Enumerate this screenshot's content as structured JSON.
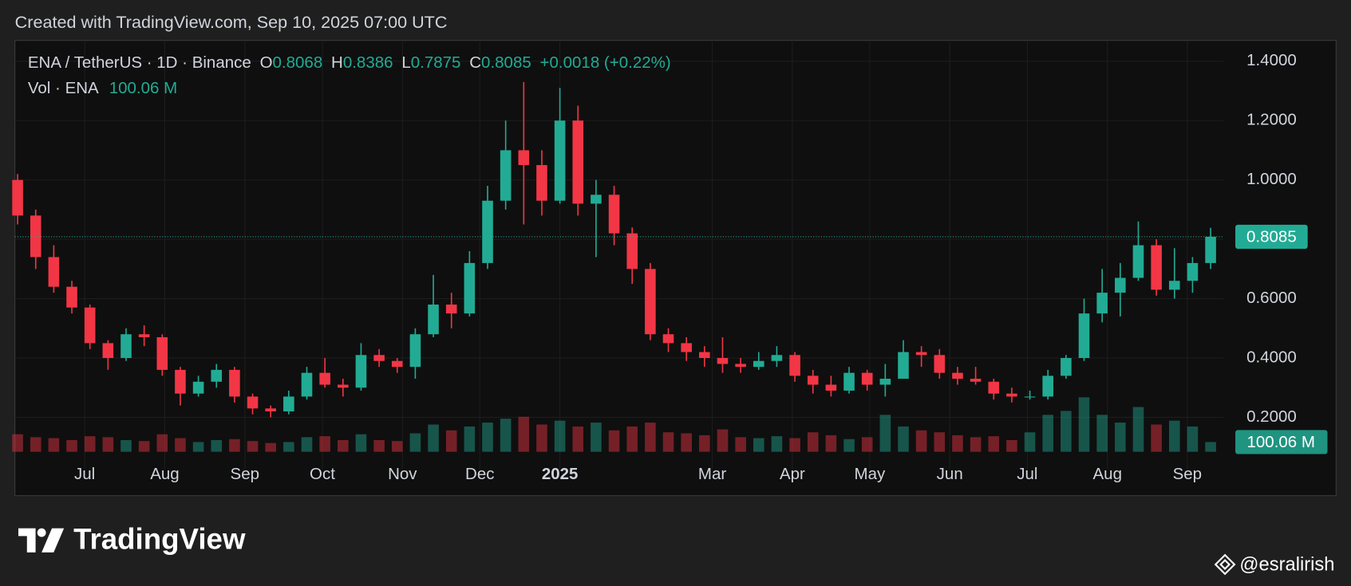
{
  "chart_data": {
    "type": "candlestick",
    "title": "Created with TradingView.com, Sep 10, 2025 07:00 UTC",
    "legend": {
      "symbol": "ENA / TetherUS · 1D · Binance",
      "items": [
        {
          "key": "O",
          "value": 0.8068
        },
        {
          "key": "H",
          "value": 0.8386
        },
        {
          "key": "L",
          "value": 0.7875
        },
        {
          "key": "C",
          "value": 0.8085
        }
      ],
      "change": "+0.0018 (+0.22%)"
    },
    "categories": [
      null,
      null,
      null,
      null,
      null,
      null,
      null,
      null,
      null,
      null,
      null,
      null,
      null,
      null,
      null,
      null,
      null,
      null,
      null,
      null,
      null,
      null,
      null,
      null,
      null,
      null,
      null,
      null,
      null,
      null,
      null,
      null,
      null,
      null,
      null,
      null,
      null,
      null,
      null,
      null,
      null,
      null,
      null,
      null,
      null,
      null,
      null,
      null,
      null,
      null,
      null,
      null,
      null,
      null,
      null,
      null,
      null,
      null,
      null,
      null,
      null,
      null,
      null,
      null,
      null,
      null,
      null
    ],
    "open": [
      1.0,
      0.88,
      0.74,
      0.64,
      0.57,
      0.45,
      0.4,
      0.48,
      0.47,
      0.36,
      0.28,
      0.32,
      0.36,
      0.27,
      0.23,
      0.22,
      0.27,
      0.35,
      0.31,
      0.3,
      0.41,
      0.39,
      0.37,
      0.48,
      0.58,
      0.55,
      0.72,
      0.93,
      1.1,
      1.05,
      0.93,
      1.2,
      0.92,
      0.95,
      0.82,
      0.7,
      0.48,
      0.45,
      0.42,
      0.4,
      0.38,
      0.37,
      0.39,
      0.41,
      0.34,
      0.31,
      0.29,
      0.35,
      0.31,
      0.33,
      0.42,
      0.41,
      0.35,
      0.33,
      0.32,
      0.28,
      0.27,
      0.27,
      0.34,
      0.4,
      0.55,
      0.62,
      0.67,
      0.78,
      0.63,
      0.66,
      0.72
    ],
    "high": [
      1.02,
      0.9,
      0.78,
      0.66,
      0.58,
      0.46,
      0.5,
      0.51,
      0.48,
      0.37,
      0.34,
      0.38,
      0.37,
      0.28,
      0.24,
      0.29,
      0.37,
      0.4,
      0.33,
      0.45,
      0.43,
      0.4,
      0.5,
      0.68,
      0.62,
      0.76,
      0.98,
      1.2,
      1.33,
      1.1,
      1.31,
      1.25,
      1.0,
      0.98,
      0.84,
      0.72,
      0.5,
      0.47,
      0.44,
      0.47,
      0.4,
      0.42,
      0.44,
      0.42,
      0.36,
      0.34,
      0.37,
      0.36,
      0.38,
      0.46,
      0.44,
      0.43,
      0.37,
      0.37,
      0.33,
      0.3,
      0.29,
      0.36,
      0.41,
      0.6,
      0.7,
      0.72,
      0.86,
      0.8,
      0.77,
      0.74,
      0.8386
    ],
    "low": [
      0.85,
      0.7,
      0.62,
      0.55,
      0.43,
      0.36,
      0.39,
      0.44,
      0.34,
      0.24,
      0.27,
      0.3,
      0.25,
      0.21,
      0.2,
      0.21,
      0.26,
      0.3,
      0.27,
      0.29,
      0.37,
      0.35,
      0.33,
      0.47,
      0.5,
      0.54,
      0.7,
      0.9,
      0.85,
      0.88,
      0.92,
      0.88,
      0.74,
      0.78,
      0.65,
      0.46,
      0.42,
      0.39,
      0.37,
      0.35,
      0.35,
      0.36,
      0.37,
      0.32,
      0.28,
      0.27,
      0.28,
      0.29,
      0.27,
      0.33,
      0.37,
      0.33,
      0.31,
      0.31,
      0.26,
      0.25,
      0.26,
      0.26,
      0.33,
      0.39,
      0.52,
      0.54,
      0.66,
      0.61,
      0.6,
      0.62,
      0.7
    ],
    "close": [
      0.88,
      0.74,
      0.64,
      0.57,
      0.45,
      0.4,
      0.48,
      0.47,
      0.36,
      0.28,
      0.32,
      0.36,
      0.27,
      0.23,
      0.22,
      0.27,
      0.35,
      0.31,
      0.3,
      0.41,
      0.39,
      0.37,
      0.48,
      0.58,
      0.55,
      0.72,
      0.93,
      1.1,
      1.05,
      0.93,
      1.2,
      0.92,
      0.95,
      0.82,
      0.7,
      0.48,
      0.45,
      0.42,
      0.4,
      0.38,
      0.37,
      0.39,
      0.41,
      0.34,
      0.31,
      0.29,
      0.35,
      0.31,
      0.33,
      0.42,
      0.41,
      0.35,
      0.33,
      0.32,
      0.28,
      0.27,
      0.27,
      0.34,
      0.4,
      0.55,
      0.62,
      0.67,
      0.78,
      0.63,
      0.66,
      0.72,
      0.8085
    ],
    "up_color": "#22ab94",
    "down_color": "#f23645",
    "volume": {
      "name": "Vol · ENA",
      "values": [
        180,
        150,
        140,
        120,
        160,
        150,
        120,
        110,
        180,
        140,
        100,
        120,
        130,
        110,
        90,
        100,
        150,
        160,
        120,
        180,
        120,
        110,
        190,
        280,
        220,
        260,
        300,
        340,
        360,
        280,
        320,
        260,
        300,
        220,
        260,
        300,
        200,
        190,
        170,
        230,
        150,
        140,
        160,
        140,
        200,
        170,
        130,
        150,
        380,
        260,
        220,
        200,
        170,
        150,
        160,
        120,
        200,
        380,
        420,
        560,
        380,
        300,
        460,
        280,
        320,
        260,
        100.06
      ],
      "last_label": "100.06 M",
      "y2lim": [
        0,
        1000
      ]
    },
    "last_price": 0.8085,
    "ylim": [
      0.084,
      1.47
    ],
    "yticks": [
      {
        "value": 0.2,
        "label": "0.2000"
      },
      {
        "value": 0.4,
        "label": "0.4000"
      },
      {
        "value": 0.6,
        "label": "0.6000"
      },
      {
        "value": 0.8,
        "label": "0.8000"
      },
      {
        "value": 1.0,
        "label": "1.0000"
      },
      {
        "value": 1.2,
        "label": "1.2000"
      },
      {
        "value": 1.4,
        "label": "1.4000"
      }
    ],
    "xlim": [
      -0.15,
      66.7
    ],
    "xticks": [
      {
        "value": 3.71,
        "label": "Jul"
      },
      {
        "value": 8.14,
        "label": "Aug"
      },
      {
        "value": 12.57,
        "label": "Sep"
      },
      {
        "value": 16.86,
        "label": "Oct"
      },
      {
        "value": 21.29,
        "label": "Nov"
      },
      {
        "value": 25.57,
        "label": "Dec"
      },
      {
        "value": 30,
        "label": "2025"
      },
      {
        "value": 38.43,
        "label": "Mar"
      },
      {
        "value": 42.86,
        "label": "Apr"
      },
      {
        "value": 47.14,
        "label": "May"
      },
      {
        "value": 51.57,
        "label": "Jun"
      },
      {
        "value": 55.86,
        "label": "Jul"
      },
      {
        "value": 60.29,
        "label": "Aug"
      },
      {
        "value": 64.71,
        "label": "Sep"
      }
    ],
    "grid": true
  },
  "footer": {
    "brand": "TradingView",
    "watermark": "@esralirish"
  }
}
